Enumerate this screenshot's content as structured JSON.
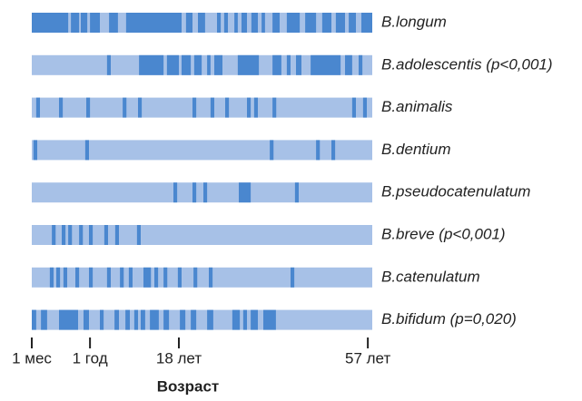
{
  "chart_data": {
    "type": "barcode",
    "x_label": "Возраст",
    "xlim": [
      0,
      100
    ],
    "xticks": [
      {
        "value": 0,
        "label": "1 мес"
      },
      {
        "value": 17.1,
        "label": "1 год"
      },
      {
        "value": 43.2,
        "label": "18 лет"
      },
      {
        "value": 98.7,
        "label": "57 лет"
      }
    ],
    "background_color": "#a7c1e7",
    "color": "#4a87cf",
    "series": [
      {
        "name": "B.longum",
        "segments": [
          [
            0,
            10.7
          ],
          [
            11.5,
            13.9
          ],
          [
            14.4,
            16.3
          ],
          [
            17.1,
            20
          ],
          [
            22.7,
            25.3
          ],
          [
            27.7,
            44
          ],
          [
            45.3,
            47.2
          ],
          [
            48.8,
            50.9
          ],
          [
            54.4,
            55.5
          ],
          [
            56.5,
            57.6
          ],
          [
            59.5,
            60.5
          ],
          [
            61.6,
            63.2
          ],
          [
            64.5,
            66.4
          ],
          [
            67.5,
            68.5
          ],
          [
            70.7,
            72.8
          ],
          [
            74.9,
            78.7
          ],
          [
            80.3,
            83.5
          ],
          [
            85.3,
            88
          ],
          [
            89.3,
            92
          ],
          [
            93.1,
            95.2
          ],
          [
            96.8,
            100
          ]
        ]
      },
      {
        "name": "B.adolescentis (p<0,001)",
        "segments": [
          [
            22.1,
            23.2
          ],
          [
            31.5,
            38.7
          ],
          [
            39.7,
            43.2
          ],
          [
            44,
            46.7
          ],
          [
            47.7,
            49.9
          ],
          [
            51.5,
            52.5
          ],
          [
            53.6,
            56
          ],
          [
            60.5,
            66.7
          ],
          [
            70.7,
            73.3
          ],
          [
            74.9,
            76
          ],
          [
            77.6,
            79.2
          ],
          [
            81.9,
            90.7
          ],
          [
            92,
            94.1
          ],
          [
            96,
            97.1
          ]
        ]
      },
      {
        "name": "B.animalis",
        "segments": [
          [
            1.3,
            2.4
          ],
          [
            8,
            9.1
          ],
          [
            16,
            17.1
          ],
          [
            26.7,
            27.8
          ],
          [
            31.2,
            32.3
          ],
          [
            47.2,
            48.3
          ],
          [
            52.5,
            53.6
          ],
          [
            56.8,
            57.9
          ],
          [
            63.2,
            64.3
          ],
          [
            65.3,
            66.4
          ],
          [
            70.7,
            71.8
          ],
          [
            94.1,
            95.2
          ],
          [
            97.3,
            98.4
          ]
        ]
      },
      {
        "name": "B.dentium",
        "segments": [
          [
            0.5,
            1.6
          ],
          [
            15.7,
            16.8
          ],
          [
            69.9,
            71
          ],
          [
            83.5,
            84.6
          ],
          [
            88,
            89.1
          ]
        ]
      },
      {
        "name": "B.pseudocatenulatum",
        "segments": [
          [
            41.6,
            42.7
          ],
          [
            47.2,
            48.3
          ],
          [
            50.4,
            51.5
          ],
          [
            60.8,
            64.3
          ],
          [
            77.3,
            78.4
          ]
        ]
      },
      {
        "name": "B.breve (p<0,001)",
        "segments": [
          [
            5.9,
            7
          ],
          [
            8.8,
            9.9
          ],
          [
            10.7,
            11.8
          ],
          [
            13.9,
            15
          ],
          [
            16.8,
            17.9
          ],
          [
            21.3,
            22.4
          ],
          [
            24.5,
            25.6
          ],
          [
            30.9,
            32
          ]
        ]
      },
      {
        "name": "B.catenulatum",
        "segments": [
          [
            5.3,
            6.4
          ],
          [
            7.2,
            8.3
          ],
          [
            9.3,
            10.4
          ],
          [
            12.8,
            13.9
          ],
          [
            16.8,
            17.9
          ],
          [
            22.1,
            23.2
          ],
          [
            25.9,
            27
          ],
          [
            28.5,
            29.6
          ],
          [
            32.8,
            35
          ],
          [
            36,
            37.1
          ],
          [
            38.7,
            39.8
          ],
          [
            42.9,
            44
          ],
          [
            47.5,
            48.6
          ],
          [
            52,
            53.1
          ],
          [
            76,
            77.1
          ]
        ]
      },
      {
        "name": "B.bifidum (p=0,020)",
        "segments": [
          [
            0,
            1.3
          ],
          [
            2.7,
            4.5
          ],
          [
            8,
            13.6
          ],
          [
            15.2,
            16.8
          ],
          [
            20,
            21.1
          ],
          [
            24.3,
            25.6
          ],
          [
            27.5,
            28.8
          ],
          [
            30.1,
            31.2
          ],
          [
            32,
            33.3
          ],
          [
            34.7,
            37.3
          ],
          [
            38.7,
            40.3
          ],
          [
            43.5,
            45.1
          ],
          [
            46.7,
            48.3
          ],
          [
            51.5,
            53.3
          ],
          [
            58.9,
            61.1
          ],
          [
            62.1,
            63.2
          ],
          [
            64.3,
            66.4
          ],
          [
            68,
            71.7
          ]
        ]
      }
    ]
  }
}
